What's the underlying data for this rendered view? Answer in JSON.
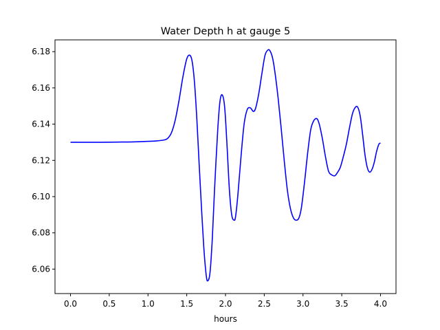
{
  "chart_data": {
    "type": "line",
    "title": "Water Depth h at gauge 5",
    "xlabel": "hours",
    "ylabel": "",
    "xlim": [
      -0.2,
      4.2
    ],
    "ylim": [
      6.0465,
      6.1865
    ],
    "grid": false,
    "x_ticks": [
      0.0,
      0.5,
      1.0,
      1.5,
      2.0,
      2.5,
      3.0,
      3.5,
      4.0
    ],
    "x_tick_labels": [
      "0.0",
      "0.5",
      "1.0",
      "1.5",
      "2.0",
      "2.5",
      "3.0",
      "3.5",
      "4.0"
    ],
    "y_ticks": [
      6.06,
      6.08,
      6.1,
      6.12,
      6.14,
      6.16,
      6.18
    ],
    "y_tick_labels": [
      "6.06",
      "6.08",
      "6.10",
      "6.12",
      "6.14",
      "6.16",
      "6.18"
    ],
    "series": [
      {
        "color": "#0000ff",
        "x": [
          0.0,
          0.2,
          0.4,
          0.6,
          0.8,
          1.0,
          1.1,
          1.2,
          1.25,
          1.3,
          1.35,
          1.4,
          1.45,
          1.5,
          1.54,
          1.57,
          1.6,
          1.63,
          1.66,
          1.69,
          1.72,
          1.75,
          1.77,
          1.8,
          1.83,
          1.86,
          1.9,
          1.93,
          1.96,
          1.99,
          2.02,
          2.05,
          2.08,
          2.11,
          2.13,
          2.16,
          2.2,
          2.24,
          2.28,
          2.32,
          2.36,
          2.39,
          2.43,
          2.47,
          2.51,
          2.55,
          2.58,
          2.61,
          2.64,
          2.68,
          2.72,
          2.76,
          2.8,
          2.84,
          2.88,
          2.92,
          2.95,
          2.98,
          3.02,
          3.06,
          3.1,
          3.14,
          3.18,
          3.21,
          3.25,
          3.29,
          3.33,
          3.37,
          3.41,
          3.44,
          3.48,
          3.52,
          3.56,
          3.6,
          3.64,
          3.68,
          3.71,
          3.74,
          3.77,
          3.8,
          3.83,
          3.86,
          3.89,
          3.92,
          3.95,
          3.98,
          4.0
        ],
        "y": [
          6.13,
          6.13,
          6.13,
          6.1301,
          6.1302,
          6.1305,
          6.1307,
          6.1312,
          6.132,
          6.135,
          6.142,
          6.153,
          6.166,
          6.176,
          6.178,
          6.1745,
          6.163,
          6.143,
          6.118,
          6.094,
          6.072,
          6.057,
          6.0535,
          6.058,
          6.077,
          6.105,
          6.137,
          6.153,
          6.156,
          6.149,
          6.128,
          6.104,
          6.09,
          6.087,
          6.089,
          6.101,
          6.122,
          6.14,
          6.148,
          6.149,
          6.147,
          6.149,
          6.157,
          6.168,
          6.178,
          6.181,
          6.18,
          6.176,
          6.168,
          6.154,
          6.137,
          6.119,
          6.103,
          6.093,
          6.088,
          6.087,
          6.0885,
          6.094,
          6.108,
          6.124,
          6.137,
          6.142,
          6.143,
          6.14,
          6.132,
          6.122,
          6.114,
          6.112,
          6.1115,
          6.113,
          6.116,
          6.122,
          6.129,
          6.138,
          6.146,
          6.1495,
          6.149,
          6.144,
          6.134,
          6.123,
          6.116,
          6.1135,
          6.115,
          6.119,
          6.125,
          6.129,
          6.1295
        ]
      }
    ]
  }
}
